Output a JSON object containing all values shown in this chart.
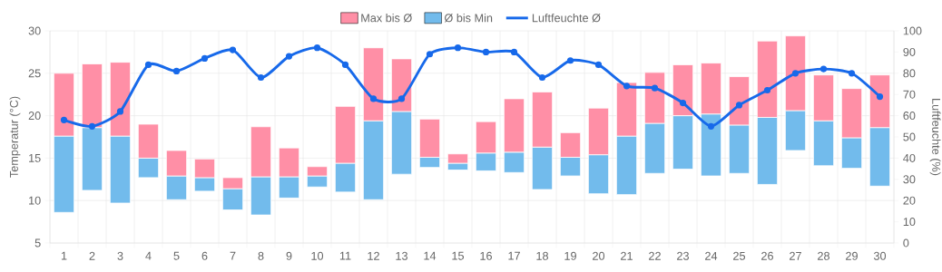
{
  "chart_data": {
    "type": "bar",
    "ylabel": "Temperatur (°C)",
    "y2label": "Luftfeuchte (%)",
    "categories": [
      "1",
      "2",
      "3",
      "4",
      "5",
      "6",
      "7",
      "8",
      "9",
      "10",
      "11",
      "12",
      "13",
      "14",
      "15",
      "16",
      "17",
      "18",
      "19",
      "20",
      "21",
      "22",
      "23",
      "24",
      "25",
      "26",
      "27",
      "28",
      "29",
      "30"
    ],
    "series": [
      {
        "name": "Ø bis Min",
        "color": "#72bbec",
        "base": [
          8.6,
          11.2,
          9.7,
          12.7,
          10.1,
          11.1,
          8.9,
          8.3,
          10.3,
          11.6,
          11.0,
          10.1,
          13.1,
          13.9,
          13.6,
          13.5,
          13.3,
          11.3,
          12.9,
          10.8,
          10.7,
          13.2,
          13.7,
          12.9,
          13.2,
          11.9,
          15.9,
          14.1,
          13.8,
          11.7
        ],
        "values": [
          9.0,
          7.4,
          7.9,
          2.3,
          2.8,
          1.6,
          2.5,
          4.5,
          2.5,
          1.3,
          3.4,
          9.3,
          7.4,
          1.2,
          0.8,
          2.1,
          2.4,
          5.0,
          2.2,
          4.6,
          6.9,
          5.9,
          6.3,
          7.3,
          5.7,
          7.9,
          4.7,
          5.3,
          3.6,
          6.9
        ]
      },
      {
        "name": "Max bis Ø",
        "color": "#ff8fa6",
        "base": [
          17.6,
          18.6,
          17.6,
          15.0,
          12.9,
          12.7,
          11.4,
          12.8,
          12.8,
          12.9,
          14.4,
          19.4,
          20.5,
          15.1,
          14.4,
          15.6,
          15.7,
          16.3,
          15.1,
          15.4,
          17.6,
          19.1,
          20.0,
          20.2,
          18.9,
          19.8,
          20.6,
          19.4,
          17.4,
          18.6
        ],
        "values": [
          7.4,
          7.5,
          8.7,
          4.0,
          3.0,
          2.2,
          1.3,
          5.9,
          3.4,
          1.1,
          6.7,
          8.6,
          6.2,
          4.5,
          1.1,
          3.7,
          6.3,
          6.5,
          2.9,
          5.5,
          6.3,
          6.0,
          6.0,
          6.0,
          5.7,
          9.0,
          8.8,
          5.4,
          5.8,
          6.2
        ]
      },
      {
        "name": "Luftfeuchte Ø",
        "type": "line",
        "axis": "y2",
        "color": "#1769ea",
        "marker": "circle",
        "values": [
          58,
          55,
          62,
          84,
          81,
          87,
          91,
          78,
          88,
          92,
          84,
          68,
          68,
          89,
          92,
          90,
          90,
          78,
          86,
          84,
          74,
          73,
          66,
          55,
          65,
          72,
          80,
          82,
          80,
          69
        ]
      }
    ],
    "ylim": [
      5,
      30
    ],
    "yticks": [
      5,
      10,
      15,
      20,
      25,
      30
    ],
    "y2lim": [
      0,
      100
    ],
    "y2ticks": [
      0,
      10,
      20,
      30,
      40,
      50,
      60,
      70,
      80,
      90,
      100
    ],
    "grid": true,
    "legend": "top"
  }
}
